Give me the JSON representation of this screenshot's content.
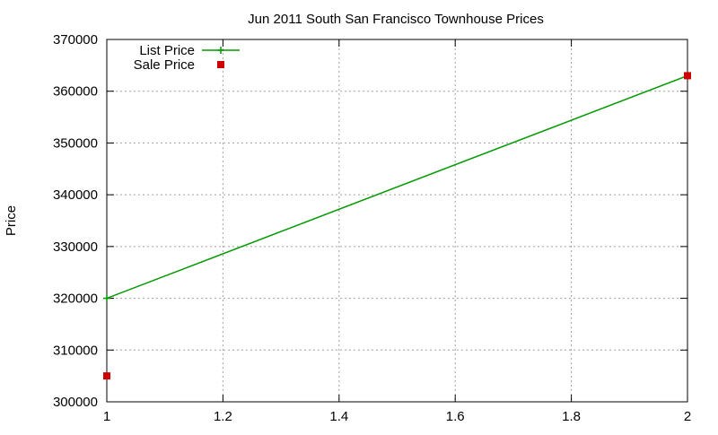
{
  "chart_data": {
    "type": "line",
    "title": "Jun 2011 South San Francisco Townhouse Prices",
    "xlabel": "",
    "ylabel": "Price",
    "xlim": [
      1,
      2
    ],
    "ylim": [
      300000,
      370000
    ],
    "x_ticks": [
      1,
      1.2,
      1.4,
      1.6,
      1.8,
      2
    ],
    "x_tick_labels": [
      "1",
      "1.2",
      "1.4",
      "1.6",
      "1.8",
      "2"
    ],
    "y_ticks": [
      300000,
      310000,
      320000,
      330000,
      340000,
      350000,
      360000,
      370000
    ],
    "y_tick_labels": [
      "300000",
      "310000",
      "320000",
      "330000",
      "340000",
      "350000",
      "360000",
      "370000"
    ],
    "grid": true,
    "legend_position": "top-left",
    "series": [
      {
        "name": "List Price",
        "style": "line with cross markers",
        "color": "#009900",
        "x": [
          1,
          2
        ],
        "y": [
          320000,
          363000
        ]
      },
      {
        "name": "Sale Price",
        "style": "square markers",
        "color": "#cc0000",
        "x": [
          1,
          2
        ],
        "y": [
          305000,
          363000
        ]
      }
    ]
  }
}
